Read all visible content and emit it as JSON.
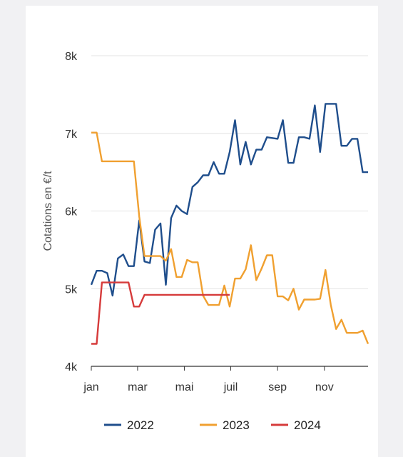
{
  "chart_data": {
    "type": "line",
    "title": "",
    "xlabel": "",
    "ylabel": "Cotations en €/t",
    "xlim": [
      1,
      53
    ],
    "ylim": [
      4000,
      8000
    ],
    "x_ticks": [
      {
        "label": "jan",
        "x": 1
      },
      {
        "label": "mar",
        "x": 9.7
      },
      {
        "label": "mai",
        "x": 18.5
      },
      {
        "label": "juil",
        "x": 27.2
      },
      {
        "label": "sep",
        "x": 36
      },
      {
        "label": "nov",
        "x": 44.8
      }
    ],
    "y_ticks": [
      {
        "label": "4k",
        "value": 4000
      },
      {
        "label": "5k",
        "value": 5000
      },
      {
        "label": "6k",
        "value": 6000
      },
      {
        "label": "7k",
        "value": 7000
      },
      {
        "label": "8k",
        "value": 8000
      }
    ],
    "grid": true,
    "legend_position": "bottom",
    "series": [
      {
        "name": "2022",
        "color": "#1f4e8c",
        "x": [
          1,
          2,
          3,
          4,
          5,
          6,
          7,
          8,
          9,
          10,
          11,
          12,
          13,
          14,
          15,
          16,
          17,
          18,
          19,
          20,
          21,
          22,
          23,
          24,
          25,
          26,
          27,
          28,
          29,
          30,
          31,
          32,
          33,
          34,
          35,
          36,
          37,
          38,
          39,
          40,
          41,
          42,
          43,
          44,
          45,
          46,
          47,
          48,
          49,
          50,
          51,
          52,
          53
        ],
        "values": [
          5050,
          5230,
          5230,
          5200,
          4910,
          5390,
          5440,
          5290,
          5290,
          5880,
          5350,
          5330,
          5760,
          5840,
          5050,
          5910,
          6070,
          6000,
          5960,
          6310,
          6370,
          6460,
          6460,
          6630,
          6480,
          6480,
          6760,
          7170,
          6600,
          6890,
          6600,
          6790,
          6790,
          6950,
          6940,
          6930,
          7170,
          6620,
          6620,
          6950,
          6950,
          6930,
          7360,
          6760,
          7380,
          7380,
          7380,
          6840,
          6840,
          6930,
          6930,
          6500,
          6500
        ]
      },
      {
        "name": "2023",
        "color": "#f0a030",
        "x": [
          1,
          2,
          3,
          4,
          5,
          6,
          7,
          8,
          9,
          10,
          11,
          12,
          13,
          14,
          15,
          16,
          17,
          18,
          19,
          20,
          21,
          22,
          23,
          24,
          25,
          26,
          27,
          28,
          29,
          30,
          31,
          32,
          33,
          34,
          35,
          36,
          37,
          38,
          39,
          40,
          41,
          42,
          43,
          44,
          45,
          46,
          47,
          48,
          49,
          50,
          51,
          52,
          53
        ],
        "values": [
          7010,
          7010,
          6640,
          6640,
          6640,
          6640,
          6640,
          6640,
          6640,
          5930,
          5420,
          5420,
          5420,
          5420,
          5360,
          5510,
          5150,
          5150,
          5370,
          5340,
          5340,
          4910,
          4790,
          4790,
          4790,
          5040,
          4770,
          5130,
          5130,
          5250,
          5560,
          5110,
          5260,
          5430,
          5430,
          4900,
          4900,
          4850,
          5000,
          4730,
          4860,
          4860,
          4860,
          4870,
          5240,
          4790,
          4480,
          4600,
          4430,
          4430,
          4430,
          4460,
          4290
        ]
      },
      {
        "name": "2024",
        "color": "#d63b3b",
        "x": [
          1,
          2,
          3,
          4,
          5,
          6,
          7,
          8,
          9,
          10,
          11,
          12,
          13,
          14,
          15,
          16,
          17,
          18,
          19,
          20,
          21,
          22,
          23,
          24,
          25,
          26,
          27
        ],
        "values": [
          4290,
          4290,
          5080,
          5080,
          5080,
          5080,
          5080,
          5080,
          4770,
          4770,
          4920,
          4920,
          4920,
          4920,
          4920,
          4920,
          4920,
          4920,
          4920,
          4920,
          4920,
          4920,
          4920,
          4920,
          4920,
          4920,
          4920
        ]
      }
    ]
  }
}
